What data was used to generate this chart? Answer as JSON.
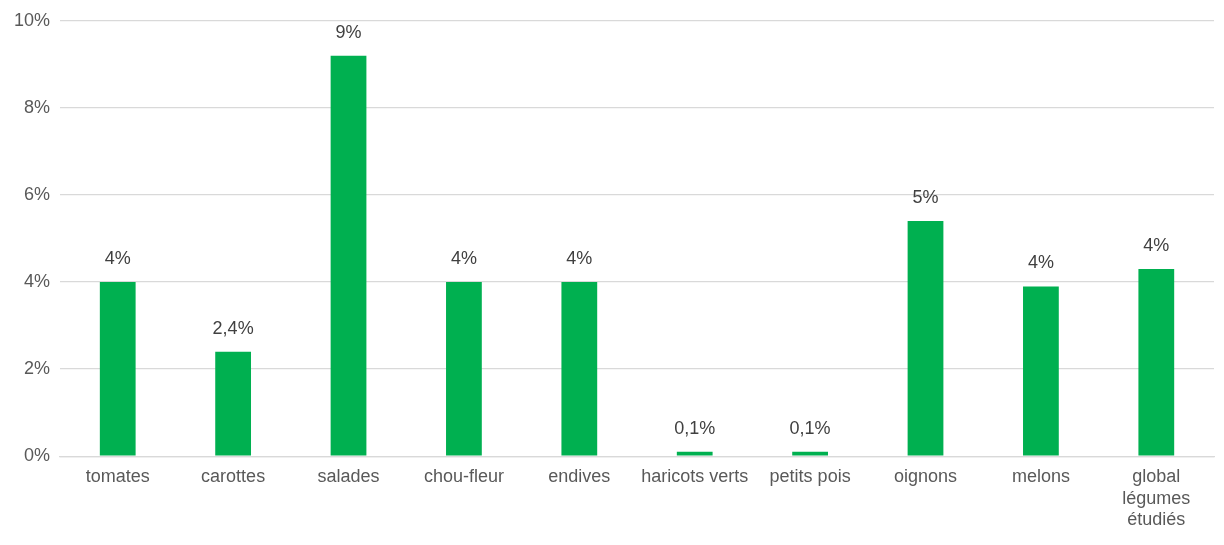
{
  "chart_data": {
    "type": "bar",
    "categories": [
      "tomates",
      "carottes",
      "salades",
      "chou-fleur",
      "endives",
      "haricots verts",
      "petits pois",
      "oignons",
      "melons",
      "global légumes étudiés"
    ],
    "values": [
      4.0,
      2.4,
      9.2,
      4.0,
      4.0,
      0.1,
      0.1,
      5.4,
      3.9,
      4.3
    ],
    "value_labels": [
      "4%",
      "2,4%",
      "9%",
      "4%",
      "4%",
      "0,1%",
      "0,1%",
      "5%",
      "4%",
      "4%"
    ],
    "color": "#00b050",
    "ylim": [
      0,
      10
    ],
    "yticks": [
      {
        "value": 0,
        "label": "0%"
      },
      {
        "value": 2,
        "label": "2%"
      },
      {
        "value": 4,
        "label": "4%"
      },
      {
        "value": 6,
        "label": "6%"
      },
      {
        "value": 8,
        "label": "8%"
      },
      {
        "value": 10,
        "label": "10%"
      }
    ],
    "grid": "y",
    "legend": false
  }
}
